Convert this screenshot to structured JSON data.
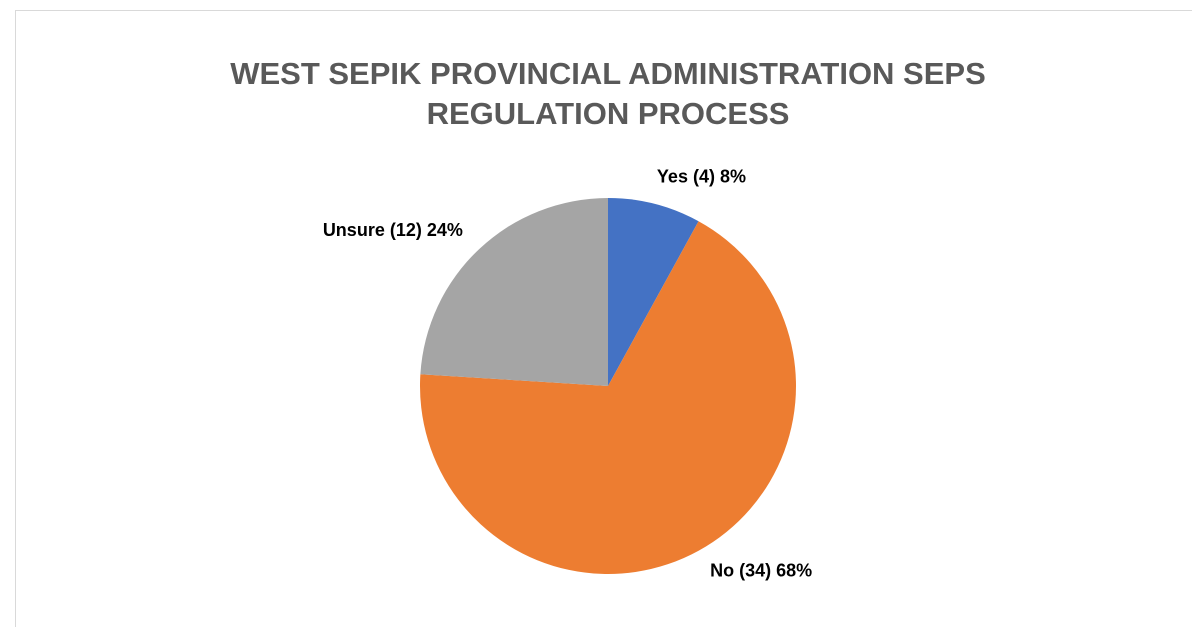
{
  "chart_data": {
    "type": "pie",
    "title": [
      "WEST SEPIK PROVINCIAL ADMINISTRATION SEPS",
      "REGULATION PROCESS"
    ],
    "values": [
      8,
      68,
      24
    ],
    "value_labels": [
      "Yes (4) 8%",
      "No (34) 68%",
      "Unsure (12) 24%"
    ],
    "colors": [
      "#4472c4",
      "#ed7d31",
      "#a5a5a5"
    ]
  }
}
